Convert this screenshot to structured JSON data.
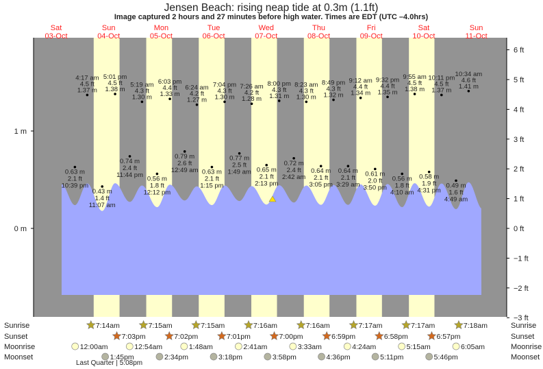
{
  "chart_data": {
    "type": "line",
    "title": "Jensen Beach: rising  neap tide at 0.3m (1.1ft)",
    "subtitle": "Image captured 2 hours and 27 minutes before high water. Times are EDT (UTC –4.0hrs)",
    "days": [
      {
        "dow": "Sat",
        "date": "03-Oct"
      },
      {
        "dow": "Sun",
        "date": "04-Oct"
      },
      {
        "dow": "Mon",
        "date": "05-Oct"
      },
      {
        "dow": "Tue",
        "date": "06-Oct"
      },
      {
        "dow": "Wed",
        "date": "07-Oct"
      },
      {
        "dow": "Thu",
        "date": "08-Oct"
      },
      {
        "dow": "Fri",
        "date": "09-Oct"
      },
      {
        "dow": "Sat",
        "date": "10-Oct"
      },
      {
        "dow": "Sun",
        "date": "11-Oct"
      }
    ],
    "y_left_ticks": [
      {
        "v": 1,
        "label": "1 m"
      },
      {
        "v": 0,
        "label": "0 m"
      }
    ],
    "y_right_ticks": [
      {
        "v": 6,
        "label": "6 ft"
      },
      {
        "v": 5,
        "label": "5 ft"
      },
      {
        "v": 4,
        "label": "4 ft"
      },
      {
        "v": 3,
        "label": "3 ft"
      },
      {
        "v": 2,
        "label": "2 ft"
      },
      {
        "v": 1,
        "label": "1 ft"
      },
      {
        "v": 0,
        "label": "0 ft"
      },
      {
        "v": -1,
        "label": "−1 ft"
      },
      {
        "v": -2,
        "label": "−2 ft"
      },
      {
        "v": -3,
        "label": "−3 ft"
      }
    ],
    "ylim_m": [
      -0.91,
      1.95
    ],
    "tides": [
      {
        "day": 0,
        "time": "10:39 pm",
        "type": "low",
        "m": "0.63 m",
        "ft": "2.1 ft",
        "v": 0.63
      },
      {
        "day": 1,
        "time": "4:17 am",
        "type": "high",
        "m": "1.37 m",
        "ft": "4.5 ft",
        "v": 1.37
      },
      {
        "day": 1,
        "time": "11:07 am",
        "type": "low",
        "m": "0.43 m",
        "ft": "1.4 ft",
        "v": 0.43
      },
      {
        "day": 1,
        "time": "5:01 pm",
        "type": "high",
        "m": "1.38 m",
        "ft": "4.5 ft",
        "v": 1.38
      },
      {
        "day": 1,
        "time": "11:44 pm",
        "type": "low",
        "m": "0.74 m",
        "ft": "2.4 ft",
        "v": 0.74
      },
      {
        "day": 2,
        "time": "5:19 am",
        "type": "high",
        "m": "1.30 m",
        "ft": "4.3 ft",
        "v": 1.3
      },
      {
        "day": 2,
        "time": "12:12 pm",
        "type": "low",
        "m": "0.56 m",
        "ft": "1.8 ft",
        "v": 0.56
      },
      {
        "day": 2,
        "time": "6:03 pm",
        "type": "high",
        "m": "1.33 m",
        "ft": "4.4 ft",
        "v": 1.33
      },
      {
        "day": 3,
        "time": "12:49 am",
        "type": "low",
        "m": "0.79 m",
        "ft": "2.6 ft",
        "v": 0.79
      },
      {
        "day": 3,
        "time": "6:24 am",
        "type": "high",
        "m": "1.27 m",
        "ft": "4.2 ft",
        "v": 1.27
      },
      {
        "day": 3,
        "time": "1:15 pm",
        "type": "low",
        "m": "0.63 m",
        "ft": "2.1 ft",
        "v": 0.63
      },
      {
        "day": 3,
        "time": "7:04 pm",
        "type": "high",
        "m": "1.30 m",
        "ft": "4.3 ft",
        "v": 1.3
      },
      {
        "day": 4,
        "time": "1:49 am",
        "type": "low",
        "m": "0.77 m",
        "ft": "2.5 ft",
        "v": 0.77
      },
      {
        "day": 4,
        "time": "7:26 am",
        "type": "high",
        "m": "1.28 m",
        "ft": "4.2 ft",
        "v": 1.28
      },
      {
        "day": 4,
        "time": "2:13 pm",
        "type": "low",
        "m": "0.65 m",
        "ft": "2.1 ft",
        "v": 0.65
      },
      {
        "day": 4,
        "time": "8:00 pm",
        "type": "high",
        "m": "1.31 m",
        "ft": "4.3 ft",
        "v": 1.31
      },
      {
        "day": 5,
        "time": "2:42 am",
        "type": "low",
        "m": "0.72 m",
        "ft": "2.4 ft",
        "v": 0.72
      },
      {
        "day": 5,
        "time": "8:23 am",
        "type": "high",
        "m": "1.30 m",
        "ft": "4.3 ft",
        "v": 1.3
      },
      {
        "day": 5,
        "time": "3:05 pm",
        "type": "low",
        "m": "0.64 m",
        "ft": "2.1 ft",
        "v": 0.64
      },
      {
        "day": 5,
        "time": "8:49 pm",
        "type": "high",
        "m": "1.32 m",
        "ft": "4.3 ft",
        "v": 1.32
      },
      {
        "day": 6,
        "time": "3:29 am",
        "type": "low",
        "m": "0.64 m",
        "ft": "2.1 ft",
        "v": 0.64
      },
      {
        "day": 6,
        "time": "9:12 am",
        "type": "high",
        "m": "1.34 m",
        "ft": "4.4 ft",
        "v": 1.34
      },
      {
        "day": 6,
        "time": "3:50 pm",
        "type": "low",
        "m": "0.61 m",
        "ft": "2.0 ft",
        "v": 0.61
      },
      {
        "day": 6,
        "time": "9:32 pm",
        "type": "high",
        "m": "1.35 m",
        "ft": "4.4 ft",
        "v": 1.35
      },
      {
        "day": 7,
        "time": "4:10 am",
        "type": "low",
        "m": "0.56 m",
        "ft": "1.8 ft",
        "v": 0.56
      },
      {
        "day": 7,
        "time": "9:55 am",
        "type": "high",
        "m": "1.38 m",
        "ft": "4.5 ft",
        "v": 1.38
      },
      {
        "day": 7,
        "time": "4:31 pm",
        "type": "low",
        "m": "0.58 m",
        "ft": "1.9 ft",
        "v": 0.58
      },
      {
        "day": 7,
        "time": "10:11 pm",
        "type": "high",
        "m": "1.37 m",
        "ft": "4.5 ft",
        "v": 1.37
      },
      {
        "day": 8,
        "time": "4:49 am",
        "type": "low",
        "m": "0.49 m",
        "ft": "1.6 ft",
        "v": 0.49
      },
      {
        "day": 8,
        "time": "10:34 am",
        "type": "high",
        "m": "1.41 m",
        "ft": "4.6 ft",
        "v": 1.41
      }
    ],
    "rows": {
      "sunrise": {
        "label": "Sunrise",
        "color": "#b5a52a",
        "items": [
          {
            "day": 1,
            "time": "7:14am"
          },
          {
            "day": 2,
            "time": "7:15am"
          },
          {
            "day": 3,
            "time": "7:15am"
          },
          {
            "day": 4,
            "time": "7:16am"
          },
          {
            "day": 5,
            "time": "7:16am"
          },
          {
            "day": 6,
            "time": "7:17am"
          },
          {
            "day": 7,
            "time": "7:17am"
          },
          {
            "day": 8,
            "time": "7:18am"
          }
        ]
      },
      "sunset": {
        "label": "Sunset",
        "color": "#d2691e",
        "items": [
          {
            "day": 1,
            "time": "7:03pm"
          },
          {
            "day": 2,
            "time": "7:02pm"
          },
          {
            "day": 3,
            "time": "7:01pm"
          },
          {
            "day": 4,
            "time": "7:00pm"
          },
          {
            "day": 5,
            "time": "6:59pm"
          },
          {
            "day": 6,
            "time": "6:58pm"
          },
          {
            "day": 7,
            "time": "6:57pm"
          }
        ]
      },
      "moonrise": {
        "label": "Moonrise",
        "color": "#ffffc8",
        "items": [
          {
            "day": 1,
            "time": "12:00am"
          },
          {
            "day": 2,
            "time": "12:54am"
          },
          {
            "day": 3,
            "time": "1:48am"
          },
          {
            "day": 4,
            "time": "2:41am"
          },
          {
            "day": 5,
            "time": "3:33am"
          },
          {
            "day": 6,
            "time": "4:24am"
          },
          {
            "day": 7,
            "time": "5:15am"
          },
          {
            "day": 8,
            "time": "6:05am"
          }
        ]
      },
      "moonset": {
        "label": "Moonset",
        "color": "#b4b4a0",
        "items": [
          {
            "day": 1,
            "time": "1:45pm"
          },
          {
            "day": 2,
            "time": "2:34pm"
          },
          {
            "day": 3,
            "time": "3:18pm"
          },
          {
            "day": 4,
            "time": "3:58pm"
          },
          {
            "day": 5,
            "time": "4:36pm"
          },
          {
            "day": 6,
            "time": "5:11pm"
          },
          {
            "day": 7,
            "time": "5:46pm"
          }
        ]
      }
    },
    "moon_phase": "Last Quarter | 5:08pm",
    "colors": {
      "night": "#939393",
      "day": "#ffffcc",
      "water": "#a0a8ff",
      "days": "#ff2020"
    }
  }
}
